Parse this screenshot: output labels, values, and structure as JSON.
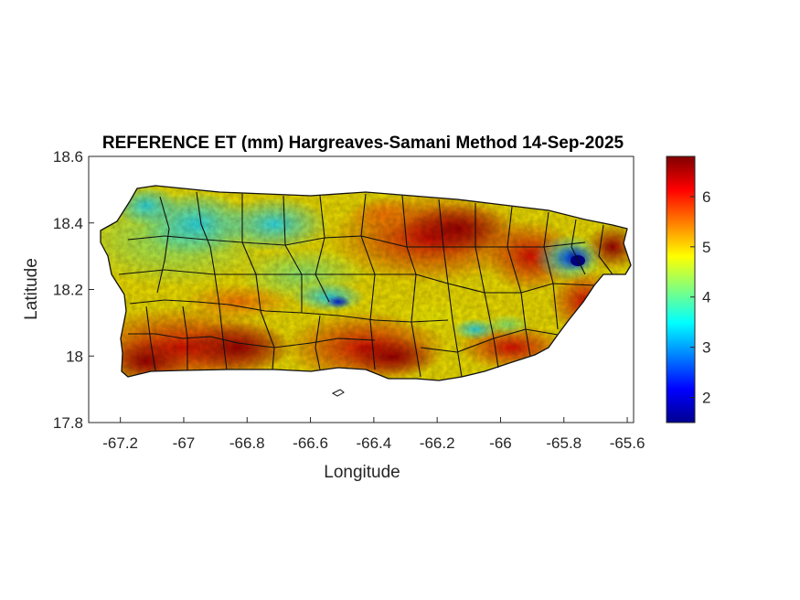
{
  "chart_data": {
    "type": "heatmap",
    "title": "REFERENCE ET (mm) Hargreaves-Samani Method  14-Sep-2025",
    "xlabel": "Longitude",
    "ylabel": "Latitude",
    "xlim": [
      -67.3,
      -65.58
    ],
    "ylim": [
      17.8,
      18.6
    ],
    "x_ticks": [
      "-67.2",
      "-67",
      "-66.8",
      "-66.6",
      "-66.4",
      "-66.2",
      "-66",
      "-65.8",
      "-65.6"
    ],
    "y_ticks": [
      "17.8",
      "18",
      "18.2",
      "18.4",
      "18.6"
    ],
    "colorbar": {
      "colormap": "jet",
      "range": [
        1.5,
        6.8
      ],
      "ticks": [
        "2",
        "3",
        "4",
        "5",
        "6"
      ]
    },
    "description_values": {
      "north_central_interior": "approx. 3.5-4.5",
      "northwest": "approx. 4-5",
      "south_coast": "approx. 6-6.8",
      "northeast_central": "approx. 6-6.5",
      "east_local_minimum_near_-65.8": "approx. 1.8-2.5"
    }
  }
}
